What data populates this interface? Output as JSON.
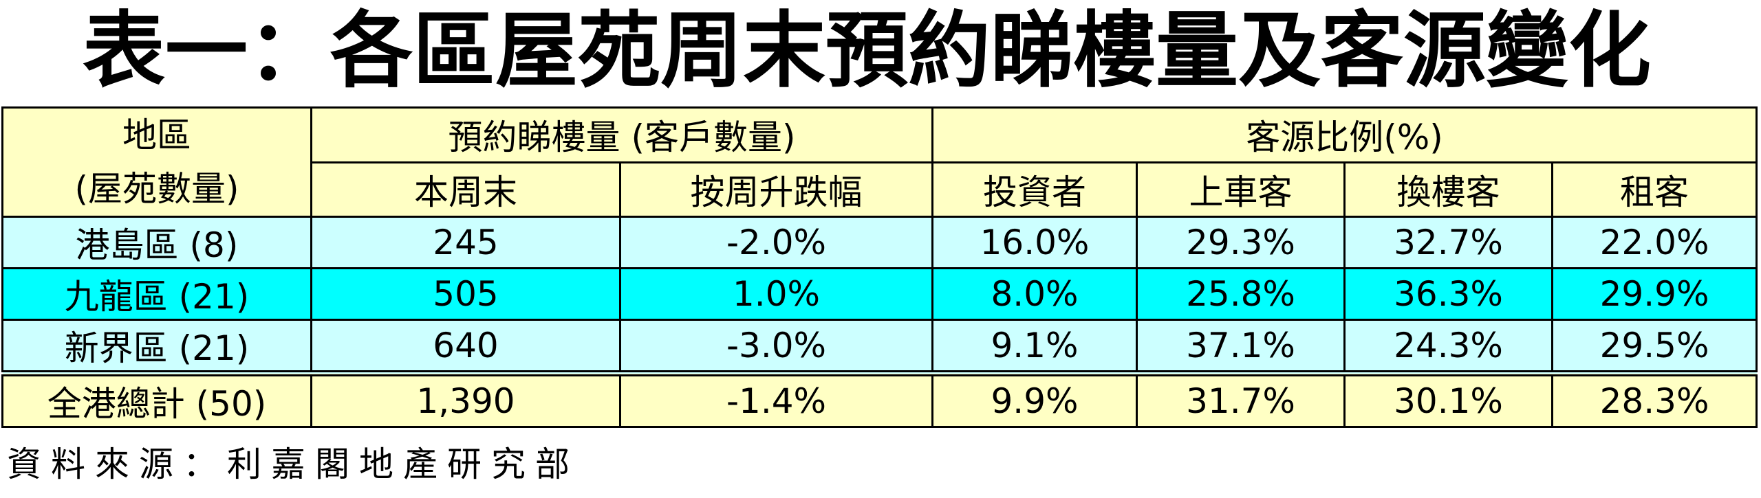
{
  "title": "表一：各區屋苑周末預約睇樓量及客源變化",
  "table": {
    "header": {
      "region": [
        "地區",
        "(屋苑數量)"
      ],
      "groups": [
        "預約睇樓量 (客戶數量)",
        "客源比例(%)"
      ],
      "columns": [
        "本周末",
        "按周升跌幅",
        "投資者",
        "上車客",
        "換樓客",
        "租客"
      ]
    },
    "rows": [
      [
        "港島區 (8)",
        "245",
        "-2.0%",
        "16.0%",
        "29.3%",
        "32.7%",
        "22.0%"
      ],
      [
        "九龍區 (21)",
        "505",
        "1.0%",
        "8.0%",
        "25.8%",
        "36.3%",
        "29.9%"
      ],
      [
        "新界區 (21)",
        "640",
        "-3.0%",
        "9.1%",
        "37.1%",
        "24.3%",
        "29.5%"
      ]
    ],
    "total": [
      "全港總計 (50)",
      "1,390",
      "-1.4%",
      "9.9%",
      "31.7%",
      "30.1%",
      "28.3%"
    ]
  },
  "source": "資料來源：利嘉閣地產研究部"
}
